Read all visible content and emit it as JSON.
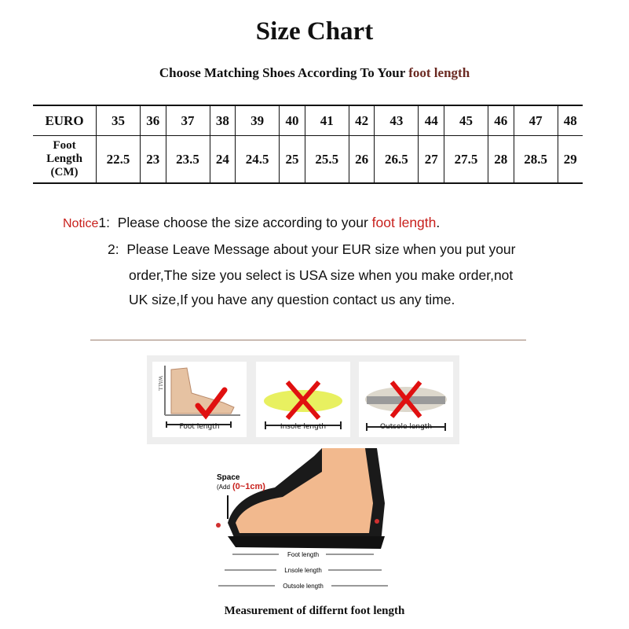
{
  "title": "Size Chart",
  "subtitle": {
    "text": "Choose Matching Shoes According To Your ",
    "highlight": "foot length"
  },
  "table": {
    "row_headers": [
      "EURO",
      "Foot Length (CM)"
    ],
    "euro": [
      "35",
      "36",
      "37",
      "38",
      "39",
      "40",
      "41",
      "42",
      "43",
      "44",
      "45",
      "46",
      "47",
      "48"
    ],
    "foot_length_cm": [
      "22.5",
      "23",
      "23.5",
      "24",
      "24.5",
      "25",
      "25.5",
      "26",
      "26.5",
      "27",
      "27.5",
      "28",
      "28.5",
      "29"
    ]
  },
  "notice": {
    "label": "Notice",
    "n1": "1:",
    "line1": "Please choose the size according to your ",
    "line1_hl": "foot length",
    "line1_end": ".",
    "n2": "2:",
    "line2": "Please Leave Message about your EUR size when you put your",
    "line3": "order,The size you select is USA size when you make order,not",
    "line4": "UK size,If you have any question  contact us any time."
  },
  "panels": [
    {
      "label": "Foot length",
      "mark": "check",
      "wall": "WALL"
    },
    {
      "label": "Insole length",
      "mark": "cross"
    },
    {
      "label": "Outsole length",
      "mark": "cross"
    }
  ],
  "diagram": {
    "space": "Space",
    "add": "(Add",
    "range": "(0~1cm)",
    "foot": "Foot length",
    "insole": "Lnsole length",
    "outsole": "Outsole length"
  },
  "caption": "Measurement of differnt foot length",
  "colors": {
    "accent_red": "#c8201c",
    "subtitle_highlight": "#6b2a22"
  }
}
